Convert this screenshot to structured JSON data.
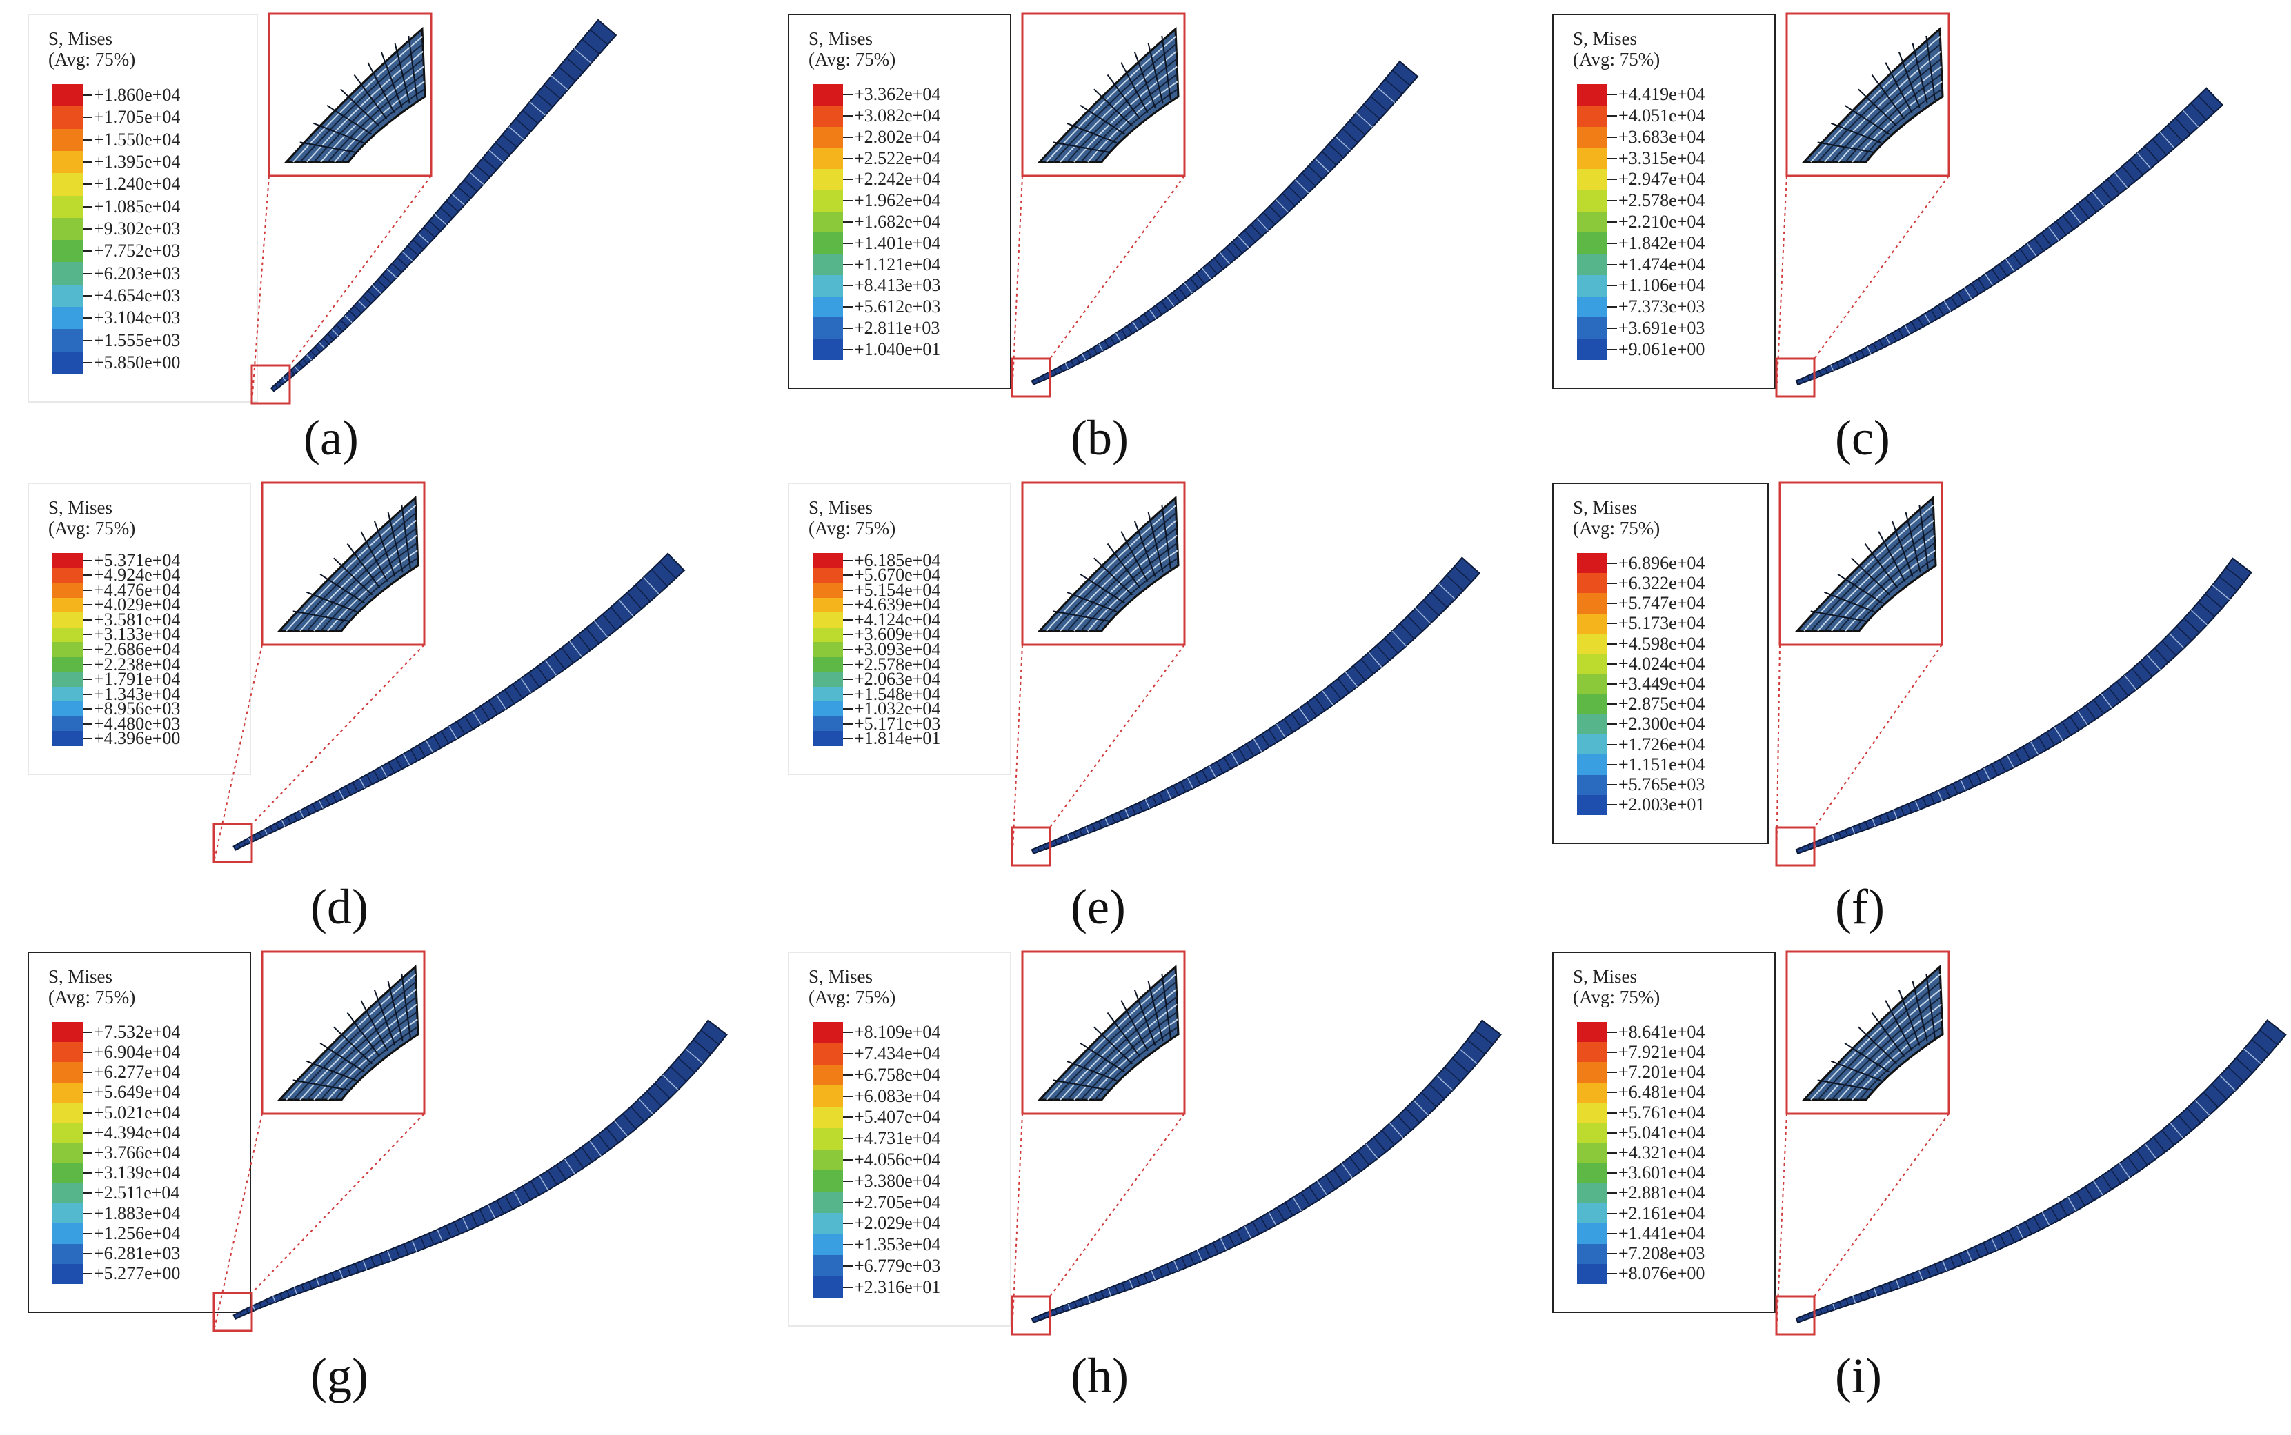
{
  "legend_title": "S, Mises",
  "legend_subtitle": "(Avg: 75%)",
  "colorbar": [
    "#d7191c",
    "#ea4f1c",
    "#f07d16",
    "#f5b41c",
    "#e8dc2e",
    "#bddb2f",
    "#8bc93a",
    "#5eb845",
    "#57b58c",
    "#53b9cf",
    "#3a9fe0",
    "#2a6bc0",
    "#1f4fae"
  ],
  "panels": [
    {
      "label": "(a)",
      "values": [
        "+1.860e+04",
        "+1.705e+04",
        "+1.550e+04",
        "+1.395e+04",
        "+1.240e+04",
        "+1.085e+04",
        "+9.302e+03",
        "+7.752e+03",
        "+6.203e+03",
        "+4.654e+03",
        "+3.104e+03",
        "+1.555e+03",
        "+5.850e+00"
      ]
    },
    {
      "label": "(b)",
      "values": [
        "+3.362e+04",
        "+3.082e+04",
        "+2.802e+04",
        "+2.522e+04",
        "+2.242e+04",
        "+1.962e+04",
        "+1.682e+04",
        "+1.401e+04",
        "+1.121e+04",
        "+8.413e+03",
        "+5.612e+03",
        "+2.811e+03",
        "+1.040e+01"
      ]
    },
    {
      "label": "(c)",
      "values": [
        "+4.419e+04",
        "+4.051e+04",
        "+3.683e+04",
        "+3.315e+04",
        "+2.947e+04",
        "+2.578e+04",
        "+2.210e+04",
        "+1.842e+04",
        "+1.474e+04",
        "+1.106e+04",
        "+7.373e+03",
        "+3.691e+03",
        "+9.061e+00"
      ]
    },
    {
      "label": "(d)",
      "values": [
        "+5.371e+04",
        "+4.924e+04",
        "+4.476e+04",
        "+4.029e+04",
        "+3.581e+04",
        "+3.133e+04",
        "+2.686e+04",
        "+2.238e+04",
        "+1.791e+04",
        "+1.343e+04",
        "+8.956e+03",
        "+4.480e+03",
        "+4.396e+00"
      ]
    },
    {
      "label": "(e)",
      "values": [
        "+6.185e+04",
        "+5.670e+04",
        "+5.154e+04",
        "+4.639e+04",
        "+4.124e+04",
        "+3.609e+04",
        "+3.093e+04",
        "+2.578e+04",
        "+2.063e+04",
        "+1.548e+04",
        "+1.032e+04",
        "+5.171e+03",
        "+1.814e+01"
      ]
    },
    {
      "label": "(f)",
      "values": [
        "+6.896e+04",
        "+6.322e+04",
        "+5.747e+04",
        "+5.173e+04",
        "+4.598e+04",
        "+4.024e+04",
        "+3.449e+04",
        "+2.875e+04",
        "+2.300e+04",
        "+1.726e+04",
        "+1.151e+04",
        "+5.765e+03",
        "+2.003e+01"
      ]
    },
    {
      "label": "(g)",
      "values": [
        "+7.532e+04",
        "+6.904e+04",
        "+6.277e+04",
        "+5.649e+04",
        "+5.021e+04",
        "+4.394e+04",
        "+3.766e+04",
        "+3.139e+04",
        "+2.511e+04",
        "+1.883e+04",
        "+1.256e+04",
        "+6.281e+03",
        "+5.277e+00"
      ]
    },
    {
      "label": "(h)",
      "values": [
        "+8.109e+04",
        "+7.434e+04",
        "+6.758e+04",
        "+6.083e+04",
        "+5.407e+04",
        "+4.731e+04",
        "+4.056e+04",
        "+3.380e+04",
        "+2.705e+04",
        "+2.029e+04",
        "+1.353e+04",
        "+6.779e+03",
        "+2.316e+01"
      ]
    },
    {
      "label": "(i)",
      "values": [
        "+8.641e+04",
        "+7.921e+04",
        "+7.201e+04",
        "+6.481e+04",
        "+5.761e+04",
        "+5.041e+04",
        "+4.321e+04",
        "+3.601e+04",
        "+2.881e+04",
        "+2.161e+04",
        "+1.441e+04",
        "+7.208e+03",
        "+8.076e+00"
      ]
    }
  ]
}
